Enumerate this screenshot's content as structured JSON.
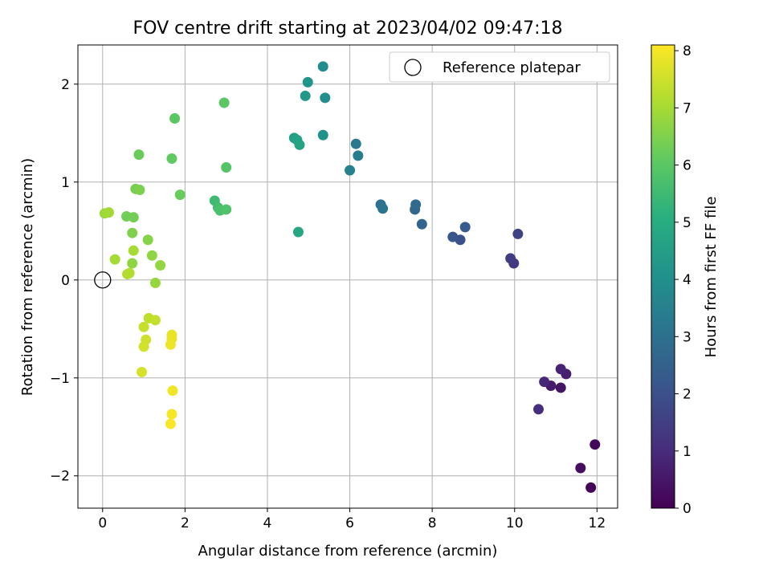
{
  "chart_data": {
    "type": "scatter",
    "title": "FOV centre drift starting at 2023/04/02 09:47:18",
    "xlabel": "Angular distance from reference (arcmin)",
    "ylabel": "Rotation from reference (arcmin)",
    "colorbar_label": "Hours from first FF file",
    "xlim": [
      -0.6,
      12.5
    ],
    "ylim": [
      -2.33,
      2.4
    ],
    "x_ticks": [
      0,
      2,
      4,
      6,
      8,
      10,
      12
    ],
    "y_ticks": [
      -2,
      -1,
      0,
      1,
      2
    ],
    "colorbar_range": [
      0,
      8.1
    ],
    "colorbar_ticks": [
      0,
      1,
      2,
      3,
      4,
      5,
      6,
      7,
      8
    ],
    "grid": true,
    "colormap": "viridis",
    "legend": {
      "placement": "top-right",
      "label": "Reference platepar"
    },
    "reference_point": {
      "x": 0,
      "y": 0
    },
    "points": [
      {
        "x": 11.85,
        "y": -2.12,
        "t": 0.05
      },
      {
        "x": 11.95,
        "y": -1.68,
        "t": 0.15
      },
      {
        "x": 11.6,
        "y": -1.92,
        "t": 0.3
      },
      {
        "x": 11.12,
        "y": -1.1,
        "t": 0.45
      },
      {
        "x": 10.88,
        "y": -1.08,
        "t": 0.6
      },
      {
        "x": 11.25,
        "y": -0.96,
        "t": 0.7
      },
      {
        "x": 11.12,
        "y": -0.91,
        "t": 0.8
      },
      {
        "x": 10.72,
        "y": -1.04,
        "t": 0.9
      },
      {
        "x": 10.58,
        "y": -1.32,
        "t": 1.05
      },
      {
        "x": 9.98,
        "y": 0.17,
        "t": 1.3
      },
      {
        "x": 9.9,
        "y": 0.22,
        "t": 1.45
      },
      {
        "x": 10.08,
        "y": 0.47,
        "t": 1.6
      },
      {
        "x": 8.68,
        "y": 0.41,
        "t": 2.0
      },
      {
        "x": 8.5,
        "y": 0.44,
        "t": 2.2
      },
      {
        "x": 8.8,
        "y": 0.54,
        "t": 2.3
      },
      {
        "x": 7.75,
        "y": 0.57,
        "t": 2.6
      },
      {
        "x": 7.58,
        "y": 0.72,
        "t": 2.7
      },
      {
        "x": 7.6,
        "y": 0.77,
        "t": 2.8
      },
      {
        "x": 6.75,
        "y": 0.77,
        "t": 3.0
      },
      {
        "x": 6.8,
        "y": 0.73,
        "t": 3.1
      },
      {
        "x": 6.15,
        "y": 1.39,
        "t": 3.3
      },
      {
        "x": 6.2,
        "y": 1.27,
        "t": 3.4
      },
      {
        "x": 6.0,
        "y": 1.12,
        "t": 3.5
      },
      {
        "x": 5.35,
        "y": 2.18,
        "t": 3.9
      },
      {
        "x": 5.4,
        "y": 1.86,
        "t": 4.0
      },
      {
        "x": 5.35,
        "y": 1.48,
        "t": 4.05
      },
      {
        "x": 4.98,
        "y": 2.02,
        "t": 4.2
      },
      {
        "x": 4.92,
        "y": 1.88,
        "t": 4.3
      },
      {
        "x": 4.65,
        "y": 1.45,
        "t": 4.5
      },
      {
        "x": 4.72,
        "y": 1.43,
        "t": 4.6
      },
      {
        "x": 4.78,
        "y": 1.38,
        "t": 4.7
      },
      {
        "x": 4.75,
        "y": 0.49,
        "t": 4.8
      },
      {
        "x": 2.72,
        "y": 0.81,
        "t": 5.5
      },
      {
        "x": 2.8,
        "y": 0.74,
        "t": 5.6
      },
      {
        "x": 2.85,
        "y": 0.71,
        "t": 5.7
      },
      {
        "x": 3.0,
        "y": 0.72,
        "t": 5.8
      },
      {
        "x": 3.0,
        "y": 1.15,
        "t": 5.9
      },
      {
        "x": 2.95,
        "y": 1.81,
        "t": 6.0
      },
      {
        "x": 1.75,
        "y": 1.65,
        "t": 6.0
      },
      {
        "x": 1.68,
        "y": 1.24,
        "t": 6.1
      },
      {
        "x": 1.88,
        "y": 0.87,
        "t": 6.2
      },
      {
        "x": 0.88,
        "y": 1.28,
        "t": 6.2
      },
      {
        "x": 0.58,
        "y": 0.65,
        "t": 6.3
      },
      {
        "x": 0.75,
        "y": 0.64,
        "t": 6.35
      },
      {
        "x": 0.8,
        "y": 0.93,
        "t": 6.4
      },
      {
        "x": 0.9,
        "y": 0.92,
        "t": 6.45
      },
      {
        "x": 0.72,
        "y": 0.48,
        "t": 6.5
      },
      {
        "x": 1.1,
        "y": 0.41,
        "t": 6.6
      },
      {
        "x": 1.2,
        "y": 0.25,
        "t": 6.7
      },
      {
        "x": 0.72,
        "y": 0.17,
        "t": 6.7
      },
      {
        "x": 1.4,
        "y": 0.15,
        "t": 6.75
      },
      {
        "x": 1.28,
        "y": -0.03,
        "t": 6.8
      },
      {
        "x": 0.05,
        "y": 0.68,
        "t": 6.9
      },
      {
        "x": 0.15,
        "y": 0.69,
        "t": 6.95
      },
      {
        "x": 0.3,
        "y": 0.21,
        "t": 7.0
      },
      {
        "x": 0.75,
        "y": 0.3,
        "t": 7.0
      },
      {
        "x": 0.6,
        "y": 0.06,
        "t": 7.1
      },
      {
        "x": 0.65,
        "y": 0.07,
        "t": 7.15
      },
      {
        "x": 1.12,
        "y": -0.39,
        "t": 7.3
      },
      {
        "x": 1.28,
        "y": -0.41,
        "t": 7.35
      },
      {
        "x": 1.0,
        "y": -0.48,
        "t": 7.4
      },
      {
        "x": 1.05,
        "y": -0.61,
        "t": 7.5
      },
      {
        "x": 1.0,
        "y": -0.68,
        "t": 7.55
      },
      {
        "x": 0.95,
        "y": -0.94,
        "t": 7.6
      },
      {
        "x": 1.68,
        "y": -0.56,
        "t": 7.8
      },
      {
        "x": 1.68,
        "y": -0.6,
        "t": 7.85
      },
      {
        "x": 1.65,
        "y": -0.66,
        "t": 7.9
      },
      {
        "x": 1.7,
        "y": -1.13,
        "t": 7.95
      },
      {
        "x": 1.68,
        "y": -1.37,
        "t": 8.0
      },
      {
        "x": 1.65,
        "y": -1.47,
        "t": 8.05
      }
    ]
  }
}
